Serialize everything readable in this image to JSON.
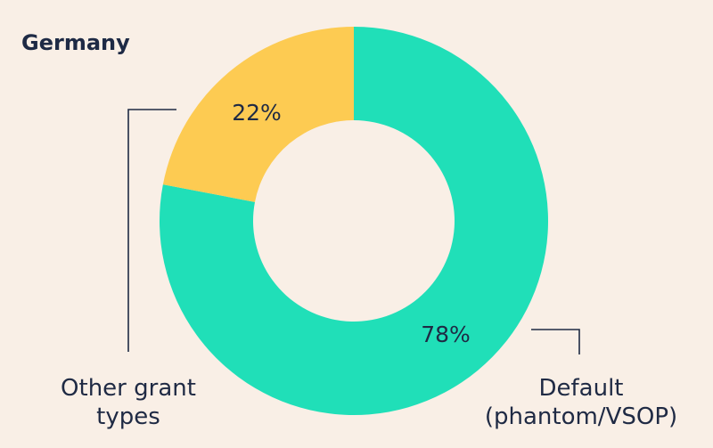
{
  "chart_data": {
    "type": "pie",
    "title": "Germany",
    "categories": [
      "Default (phantom/VSOP)",
      "Other grant types"
    ],
    "values": [
      78,
      22
    ],
    "value_labels": [
      "78%",
      "22%"
    ],
    "legend_lines": {
      "default": [
        "Default",
        "(phantom/VSOP)"
      ],
      "other": [
        "Other grant",
        "types"
      ]
    },
    "colors": {
      "default": "#20dfb8",
      "other": "#fdcb52",
      "background": "#f9efe6",
      "connector": "#1f2a44"
    },
    "donut": true
  }
}
